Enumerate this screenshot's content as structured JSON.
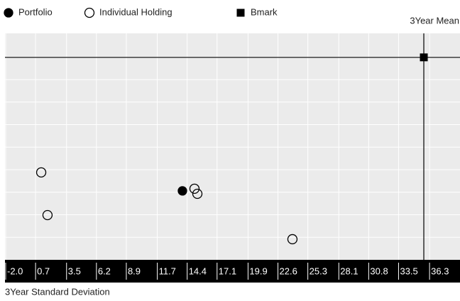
{
  "chart_data": {
    "type": "scatter",
    "xlabel": "3Year Standard Deviation",
    "ylabel": "3Year Mean",
    "xlim": [
      -2.0,
      39.05
    ],
    "ylim": [
      0,
      20.1
    ],
    "xticks": [
      {
        "value": -2,
        "label": "-2.0"
      },
      0.7,
      3.5,
      6.2,
      8.9,
      11.7,
      14.4,
      17.1,
      19.9,
      22.6,
      25.3,
      28.1,
      30.8,
      33.5,
      36.3
    ],
    "yticks": [
      2,
      4,
      6,
      8,
      10,
      12,
      14,
      16,
      18
    ],
    "grid": true,
    "series": [
      {
        "name": "Portfolio",
        "marker": "filled-circle",
        "color": "#000000",
        "x": [
          13.97
        ],
        "y": [
          6.12
        ]
      },
      {
        "name": "Individual Holding",
        "marker": "hollow-circle",
        "color": "#000000",
        "x": [
          1.21,
          1.78,
          15.06,
          15.32,
          23.91
        ],
        "y": [
          7.76,
          3.97,
          6.31,
          5.86,
          1.83
        ]
      },
      {
        "name": "Bmark",
        "marker": "square",
        "color": "#000000",
        "x": [
          35.78
        ],
        "y": [
          17.97
        ],
        "crosshair": true
      }
    ]
  }
}
